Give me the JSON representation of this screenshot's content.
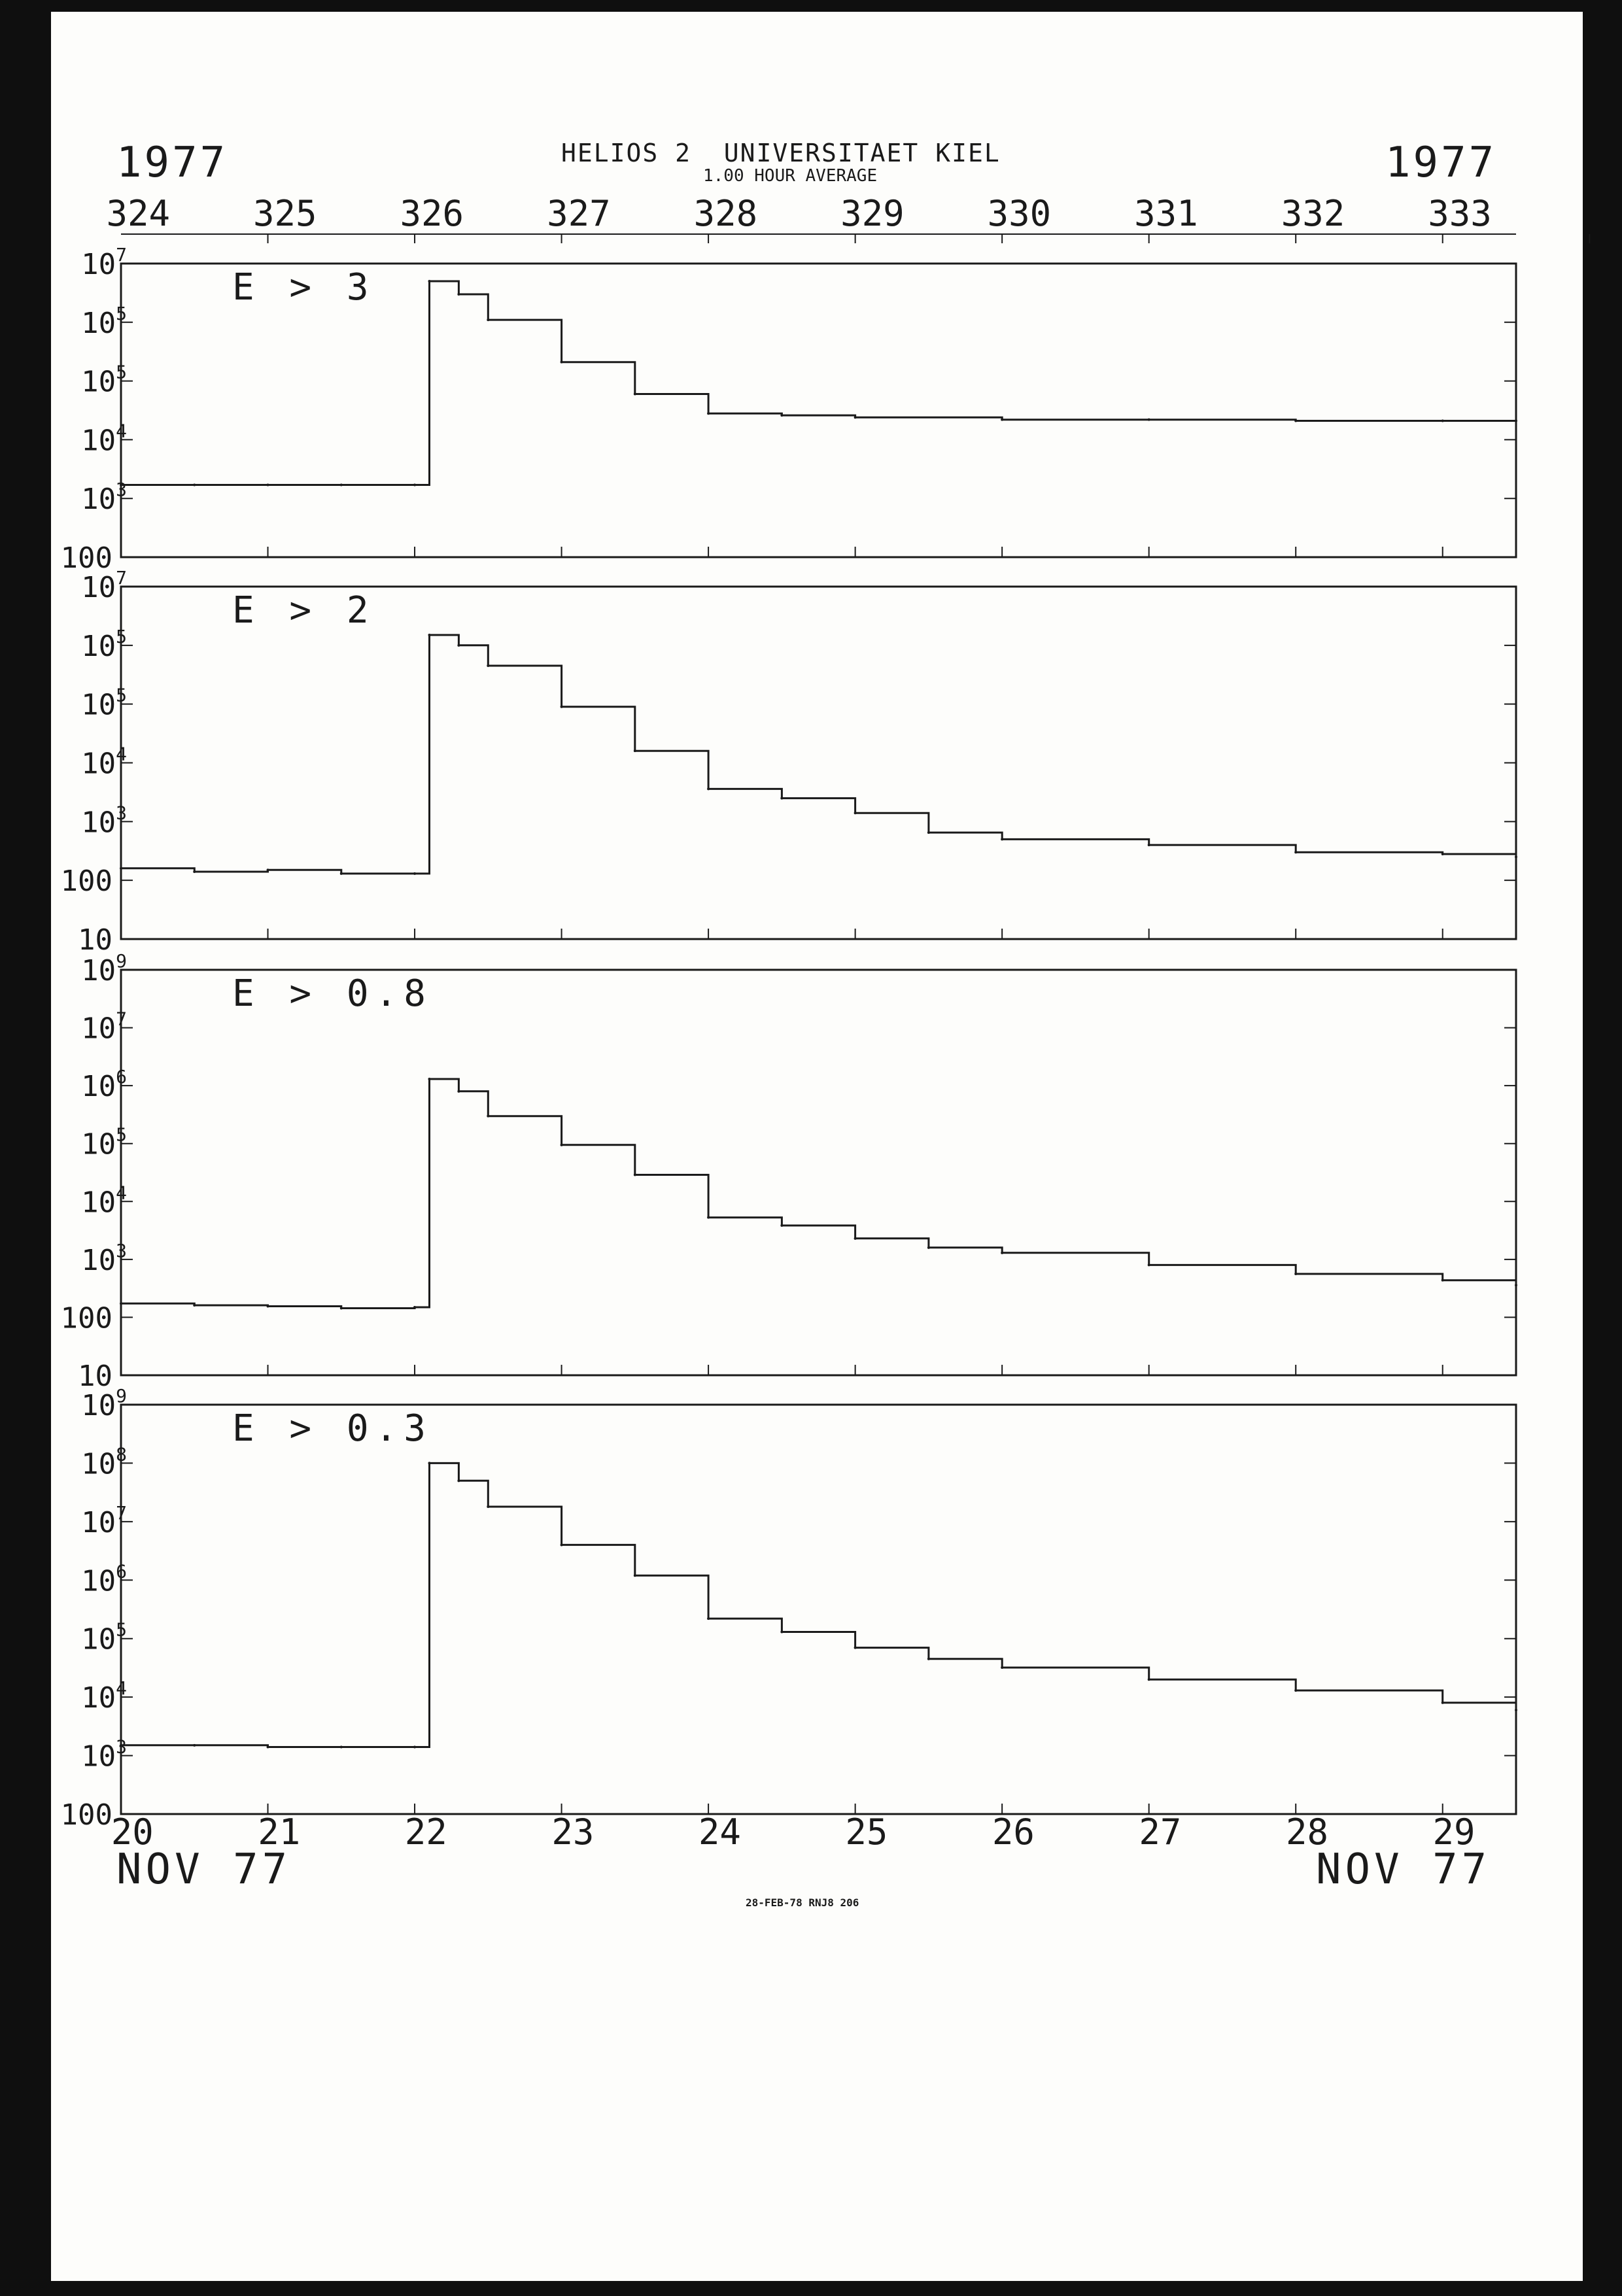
{
  "header": {
    "year_left": "1977",
    "year_right": "1977",
    "title": "HELIOS 2  UNIVERSITAET KIEL",
    "subtitle": "1.00 HOUR AVERAGE",
    "date_left": "NOV 77",
    "date_right": "NOV 77",
    "footer_stamp": "28-FEB-78 RNJ8 206"
  },
  "colors": {
    "ink": "#1a1a1a",
    "paper": "#fdfdfb",
    "border": "#0f0f0f"
  },
  "x_axis": {
    "day_of_year_ticks": [
      "324",
      "325",
      "326",
      "327",
      "328",
      "329",
      "330",
      "331",
      "332",
      "333"
    ],
    "date_ticks": [
      "20",
      "21",
      "22",
      "23",
      "24",
      "25",
      "26",
      "27",
      "28",
      "29"
    ]
  },
  "chart_data": [
    {
      "type": "line",
      "title": "E > 3",
      "y_scale": "log",
      "ylim": [
        100,
        10000000
      ],
      "y_tick_labels": [
        "10^7",
        "10^5",
        "10^5",
        "10^4",
        "10^3",
        "100"
      ],
      "x": [
        "324.0",
        "324.5",
        "325.0",
        "325.5",
        "326.0",
        "326.1",
        "326.3",
        "326.5",
        "327.0",
        "327.5",
        "328.0",
        "328.5",
        "329.0",
        "330.0",
        "331.0",
        "332.0",
        "333.0",
        "333.5"
      ],
      "values": [
        1700,
        1700,
        1700,
        1700,
        1700,
        5000000,
        3000000,
        1100000,
        210000,
        60000,
        28000,
        26000,
        24000,
        22000,
        22000,
        21000,
        21000,
        21000
      ]
    },
    {
      "type": "line",
      "title": "E > 2",
      "y_scale": "log",
      "ylim": [
        10,
        10000000
      ],
      "y_tick_labels": [
        "10^7",
        "10^5",
        "10^5",
        "10^4",
        "10^3",
        "100",
        "10"
      ],
      "x": [
        "324.0",
        "324.5",
        "325.0",
        "325.5",
        "326.0",
        "326.1",
        "326.3",
        "326.5",
        "327.0",
        "327.5",
        "328.0",
        "328.5",
        "329.0",
        "329.5",
        "330.0",
        "331.0",
        "332.0",
        "333.0",
        "333.5"
      ],
      "values": [
        160,
        140,
        150,
        130,
        130,
        1500000,
        1000000,
        450000,
        90000,
        16000,
        3600,
        2500,
        1400,
        650,
        500,
        400,
        300,
        280,
        250
      ]
    },
    {
      "type": "line",
      "title": "E > 0.8",
      "y_scale": "log",
      "ylim": [
        10,
        1000000000
      ],
      "y_tick_labels": [
        "10^9",
        "10^7",
        "10^6",
        "10^5",
        "10^4",
        "10^3",
        "100",
        "10"
      ],
      "x": [
        "324.0",
        "324.5",
        "325.0",
        "325.5",
        "326.0",
        "326.1",
        "326.3",
        "326.5",
        "327.0",
        "327.5",
        "328.0",
        "328.5",
        "329.0",
        "329.5",
        "330.0",
        "331.0",
        "332.0",
        "333.0",
        "333.5"
      ],
      "values": [
        260,
        240,
        230,
        210,
        220,
        7000000,
        4000000,
        1300000,
        350000,
        90000,
        13000,
        9000,
        5000,
        3300,
        2600,
        1500,
        1000,
        750,
        600
      ]
    },
    {
      "type": "line",
      "title": "E > 0.3",
      "y_scale": "log",
      "ylim": [
        100,
        1000000000
      ],
      "y_tick_labels": [
        "10^9",
        "10^8",
        "10^7",
        "10^6",
        "10^5",
        "10^4",
        "10^3",
        "100"
      ],
      "x": [
        "324.0",
        "324.5",
        "325.0",
        "325.5",
        "326.0",
        "326.1",
        "326.3",
        "326.5",
        "327.0",
        "327.5",
        "328.0",
        "328.5",
        "329.0",
        "329.5",
        "330.0",
        "331.0",
        "332.0",
        "333.0",
        "333.5"
      ],
      "values": [
        1500,
        1500,
        1400,
        1400,
        1400,
        100000000,
        50000000,
        18000000,
        4000000,
        1200000,
        220000,
        130000,
        70000,
        45000,
        32000,
        20000,
        13000,
        8000,
        6000
      ]
    }
  ]
}
